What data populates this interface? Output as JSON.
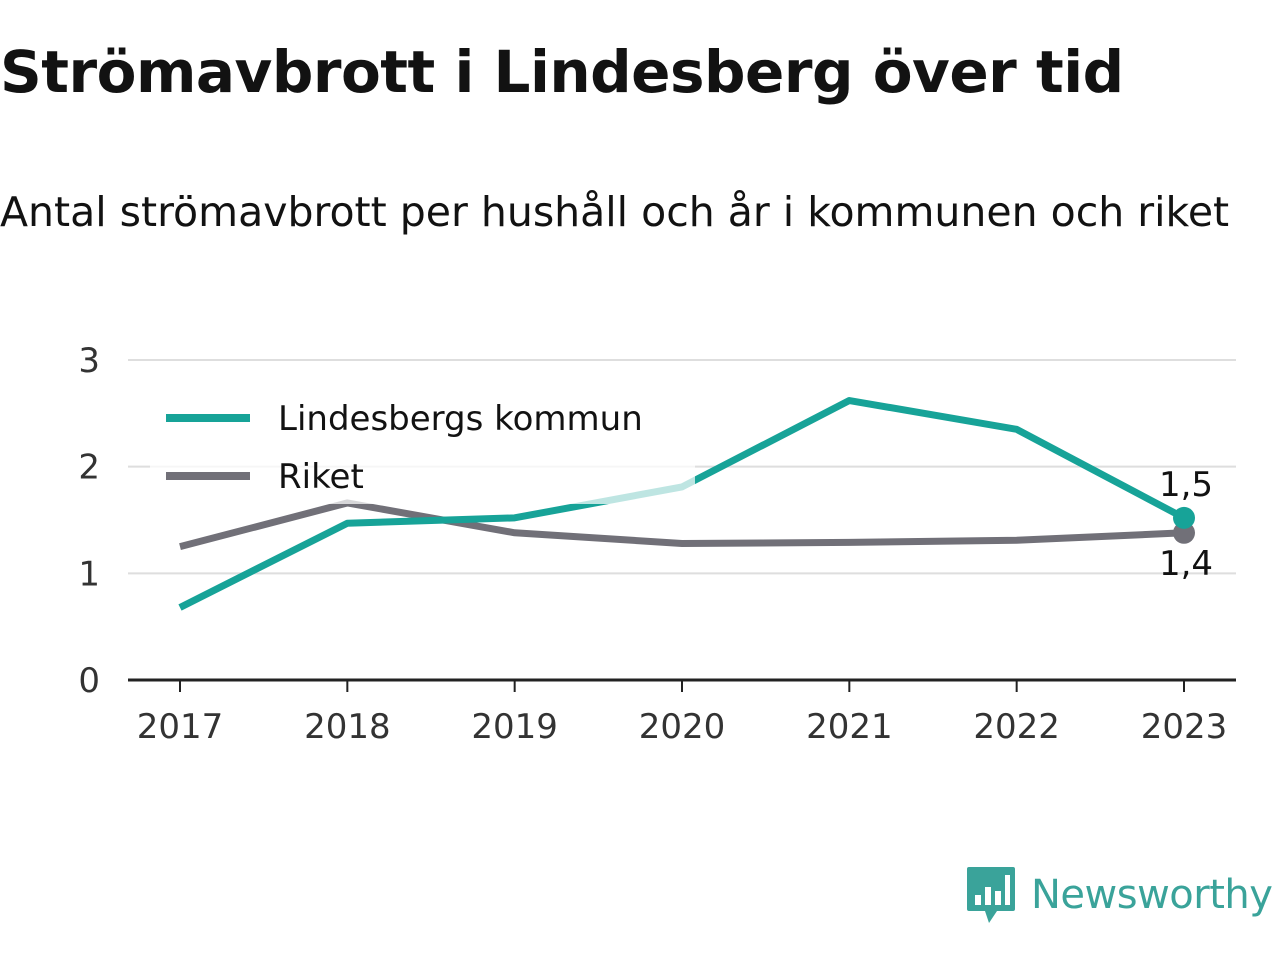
{
  "title": "Strömavbrott i Lindesberg över tid",
  "subtitle": "Antal strömavbrott per hushåll och år i kommunen och riket",
  "brand": {
    "name": "Newsworthy",
    "icon": "newsworthy-logo-icon",
    "color": "#3aa39a"
  },
  "chart_data": {
    "type": "line",
    "x": [
      "2017",
      "2018",
      "2019",
      "2020",
      "2021",
      "2022",
      "2023"
    ],
    "yticks": [
      "0",
      "1",
      "2",
      "3"
    ],
    "ylim": [
      0,
      3
    ],
    "grid": true,
    "legend_position": "top-left",
    "series": [
      {
        "name": "Lindesbergs kommun",
        "color": "#17a398",
        "values": [
          0.68,
          1.47,
          1.52,
          1.81,
          2.62,
          2.35,
          1.52
        ],
        "end_label": "1,5"
      },
      {
        "name": "Riket",
        "color": "#717078",
        "values": [
          1.25,
          1.66,
          1.38,
          1.28,
          1.29,
          1.31,
          1.38
        ],
        "end_label": "1,4"
      }
    ]
  }
}
